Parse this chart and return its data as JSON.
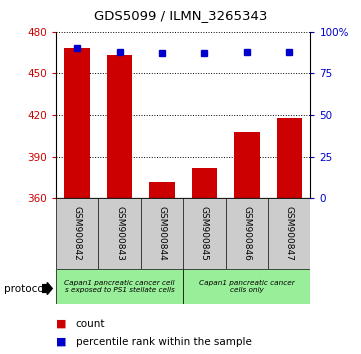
{
  "title": "GDS5099 / ILMN_3265343",
  "samples": [
    "GSM900842",
    "GSM900843",
    "GSM900844",
    "GSM900845",
    "GSM900846",
    "GSM900847"
  ],
  "counts": [
    468,
    463,
    372,
    382,
    408,
    418
  ],
  "percentiles": [
    90,
    88,
    87,
    87,
    88,
    88
  ],
  "ylim_left": [
    360,
    480
  ],
  "ylim_right": [
    0,
    100
  ],
  "yticks_left": [
    360,
    390,
    420,
    450,
    480
  ],
  "yticks_right": [
    0,
    25,
    50,
    75,
    100
  ],
  "bar_color": "#cc0000",
  "marker_color": "#0000cc",
  "group1_label": "Capan1 pancreatic cancer cell\ns exposed to PS1 stellate cells",
  "group2_label": "Capan1 pancreatic cancer\ncells only",
  "group1_count": 3,
  "group2_count": 3,
  "group_bg_color": "#99ee99",
  "tick_area_color": "#cccccc",
  "legend_count_color": "#cc0000",
  "legend_pct_color": "#0000cc",
  "protocol_label": "protocol"
}
